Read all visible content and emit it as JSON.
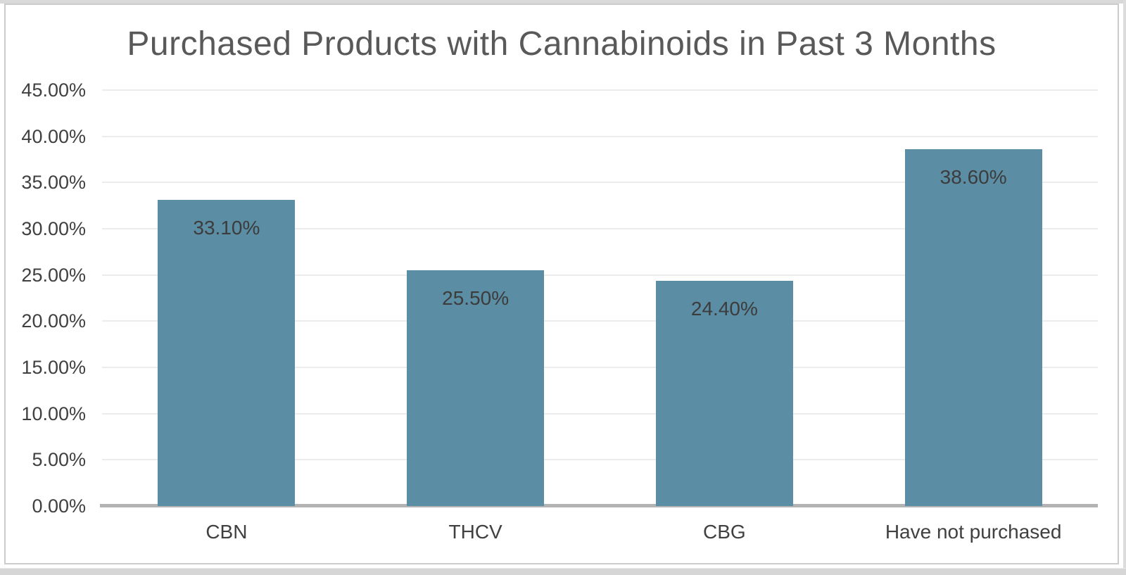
{
  "chart_data": {
    "type": "bar",
    "title": "Purchased Products with Cannabinoids in Past 3 Months",
    "categories": [
      "CBN",
      "THCV",
      "CBG",
      "Have not purchased"
    ],
    "values": [
      33.1,
      25.5,
      24.4,
      38.6
    ],
    "data_labels": [
      "33.10%",
      "25.50%",
      "24.40%",
      "38.60%"
    ],
    "xlabel": "",
    "ylabel": "",
    "ylim": [
      0,
      45
    ],
    "ytick_step": 5,
    "ytick_labels": [
      "0.00%",
      "5.00%",
      "10.00%",
      "15.00%",
      "20.00%",
      "25.00%",
      "30.00%",
      "35.00%",
      "40.00%",
      "45.00%"
    ],
    "grid": true,
    "legend": false,
    "colors": {
      "bar_fill": "#5B8DA4",
      "data_label_text": "#3C3C3C",
      "tick_text": "#404040",
      "title_text": "#595959",
      "gridline": "#ECECEC",
      "axis_line": "#B3B3B3",
      "frame_border": "#CCCCCC"
    }
  }
}
